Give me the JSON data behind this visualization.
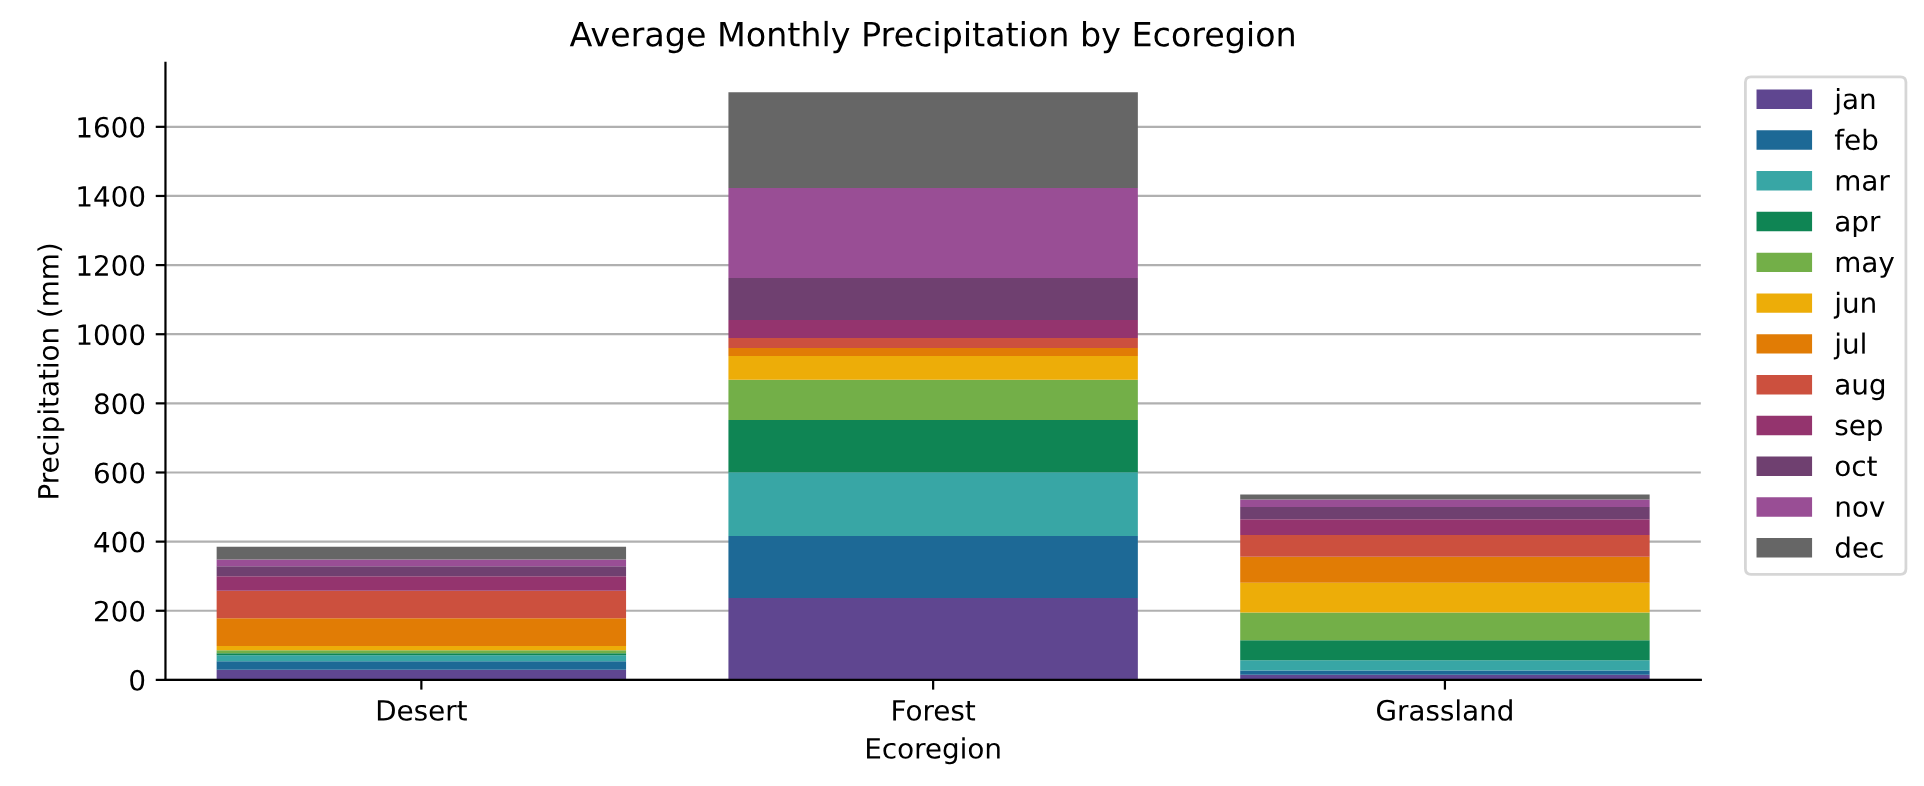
{
  "chart_data": {
    "type": "bar",
    "stacked": true,
    "title": "Average Monthly Precipitation by Ecoregion",
    "xlabel": "Ecoregion",
    "ylabel": "Precipitation (mm)",
    "categories": [
      "Desert",
      "Forest",
      "Grassland"
    ],
    "series": [
      {
        "name": "jan",
        "color": "#5f4690",
        "values": [
          29,
          237,
          15
        ]
      },
      {
        "name": "feb",
        "color": "#1d6996",
        "values": [
          25,
          179,
          12
        ]
      },
      {
        "name": "mar",
        "color": "#38a6a5",
        "values": [
          17,
          185,
          30
        ]
      },
      {
        "name": "apr",
        "color": "#0f8554",
        "values": [
          6,
          151,
          58
        ]
      },
      {
        "name": "may",
        "color": "#73af48",
        "values": [
          9,
          116,
          80
        ]
      },
      {
        "name": "jun",
        "color": "#edad08",
        "values": [
          12,
          69,
          86
        ]
      },
      {
        "name": "jul",
        "color": "#e17c05",
        "values": [
          80,
          23,
          75
        ]
      },
      {
        "name": "aug",
        "color": "#cc503e",
        "values": [
          80,
          29,
          63
        ]
      },
      {
        "name": "sep",
        "color": "#94346e",
        "values": [
          42,
          52,
          46
        ]
      },
      {
        "name": "oct",
        "color": "#6f4070",
        "values": [
          29,
          122,
          35
        ]
      },
      {
        "name": "nov",
        "color": "#994e95",
        "values": [
          19,
          260,
          22
        ]
      },
      {
        "name": "dec",
        "color": "#666666",
        "values": [
          37,
          277,
          14
        ]
      }
    ],
    "ylim": [
      0,
      1785
    ],
    "yticks": [
      0,
      200,
      400,
      600,
      800,
      1000,
      1200,
      1400,
      1600
    ],
    "grid": "y",
    "legend": "top right"
  }
}
